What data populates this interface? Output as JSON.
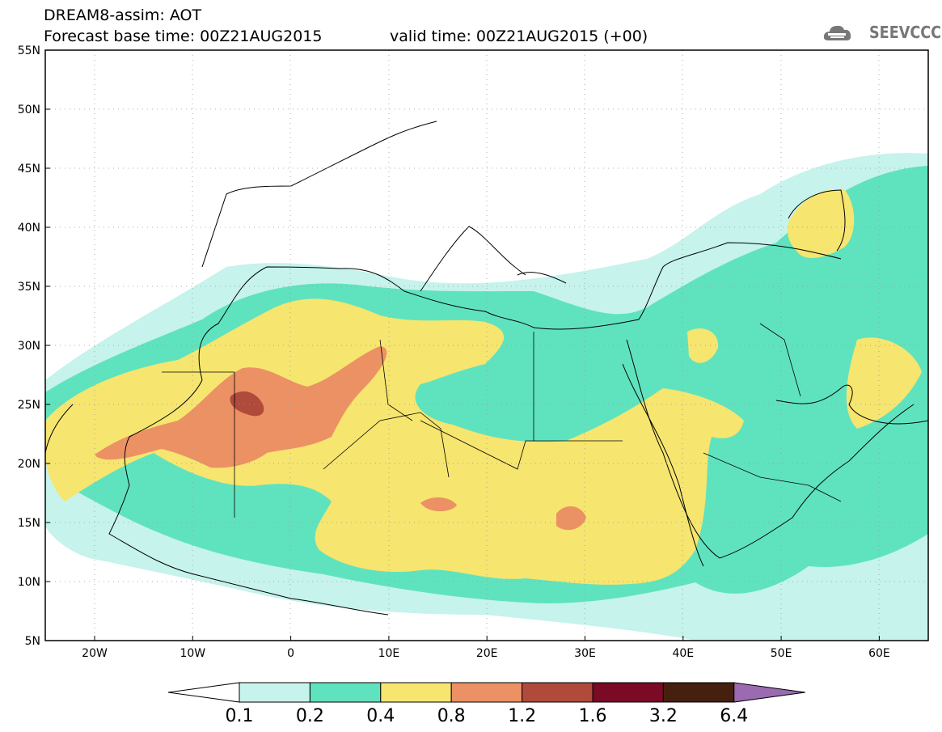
{
  "header": {
    "line1": "DREAM8-assim: AOT",
    "line2": "Forecast base time: 00Z21AUG2015",
    "line3": "valid time: 00Z21AUG2015 (+00)"
  },
  "logo": {
    "text": "SEEVCCC",
    "icon": "cloud-icon"
  },
  "map": {
    "lat_labels": [
      "55N",
      "50N",
      "45N",
      "40N",
      "35N",
      "30N",
      "25N",
      "20N",
      "15N",
      "10N",
      "5N"
    ],
    "lon_labels": [
      "20W",
      "10W",
      "0",
      "10E",
      "20E",
      "30E",
      "40E",
      "50E",
      "60E"
    ]
  },
  "colorbar": {
    "ticks": [
      "0.1",
      "0.2",
      "0.4",
      "0.8",
      "1.2",
      "1.6",
      "3.2",
      "6.4"
    ],
    "colors": [
      "#c6f3ec",
      "#5fe3be",
      "#f6e56f",
      "#ec9164",
      "#b04a3a",
      "#7a0a25",
      "#45200f",
      "#9a6bb0"
    ]
  }
}
